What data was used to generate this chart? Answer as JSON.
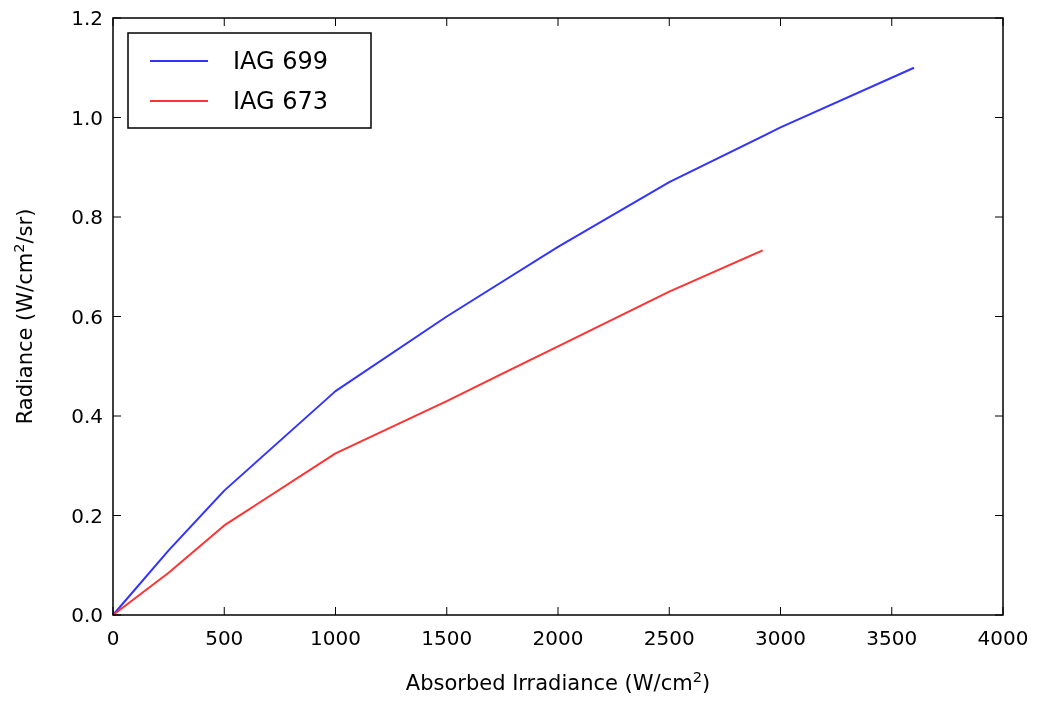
{
  "chart_data": {
    "type": "line",
    "xlabel": "Absorbed Irradiance (W/cm$^{2}$)",
    "ylabel": "Radiance (W/cm$^{2}$/sr)",
    "xlim": [
      0,
      4000
    ],
    "ylim": [
      0,
      1.2
    ],
    "xticks": [
      0,
      500,
      1000,
      1500,
      2000,
      2500,
      3000,
      3500,
      4000
    ],
    "yticks": [
      {
        "value": 0,
        "label": "0.0"
      },
      {
        "value": 0.2,
        "label": "0.2"
      },
      {
        "value": 0.4,
        "label": "0.4"
      },
      {
        "value": 0.6,
        "label": "0.6"
      },
      {
        "value": 0.8,
        "label": "0.8"
      },
      {
        "value": 1,
        "label": "1.0"
      },
      {
        "value": 1.2,
        "label": "1.2"
      }
    ],
    "legend": "top left",
    "grid": false,
    "line_style": "solid",
    "marker": "none",
    "series": [
      {
        "name": "IAG 699",
        "color": "#3333ff",
        "x": [
          0,
          250,
          500,
          1000,
          1500,
          2000,
          2500,
          3000,
          3600
        ],
        "values": [
          0,
          0.13,
          0.25,
          0.45,
          0.6,
          0.74,
          0.87,
          0.98,
          1.1
        ]
      },
      {
        "name": "IAG 673",
        "color": "#ff3333",
        "x": [
          0,
          250,
          500,
          1000,
          1500,
          2000,
          2500,
          2920
        ],
        "values": [
          0,
          0.085,
          0.18,
          0.325,
          0.43,
          0.54,
          0.65,
          0.733
        ]
      }
    ]
  }
}
